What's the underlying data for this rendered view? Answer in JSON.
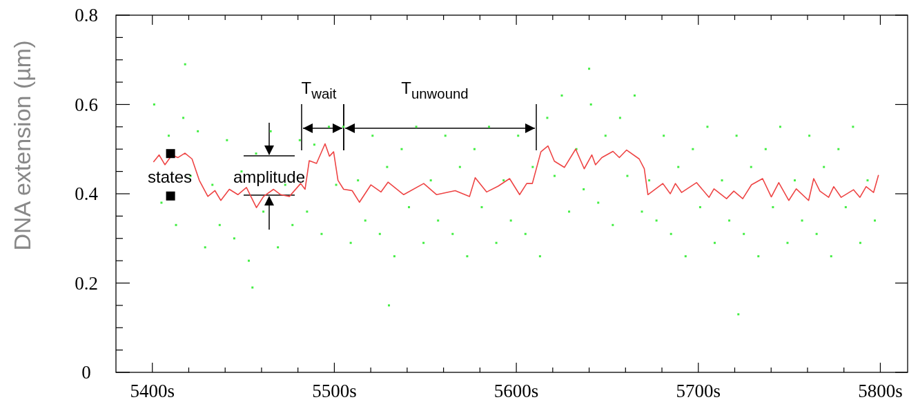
{
  "chart_data": {
    "type": "scatter",
    "ylabel": "DNA extension (µm)",
    "xlim": [
      5380,
      5815
    ],
    "xticks": [
      {
        "value": 5400,
        "label": "5400s"
      },
      {
        "value": 5420,
        "label": null
      },
      {
        "value": 5440,
        "label": null
      },
      {
        "value": 5460,
        "label": null
      },
      {
        "value": 5480,
        "label": null
      },
      {
        "value": 5500,
        "label": "5500s"
      },
      {
        "value": 5520,
        "label": null
      },
      {
        "value": 5540,
        "label": null
      },
      {
        "value": 5560,
        "label": null
      },
      {
        "value": 5580,
        "label": null
      },
      {
        "value": 5600,
        "label": "5600s"
      },
      {
        "value": 5620,
        "label": null
      },
      {
        "value": 5640,
        "label": null
      },
      {
        "value": 5660,
        "label": null
      },
      {
        "value": 5680,
        "label": null
      },
      {
        "value": 5700,
        "label": "5700s"
      },
      {
        "value": 5720,
        "label": null
      },
      {
        "value": 5740,
        "label": null
      },
      {
        "value": 5760,
        "label": null
      },
      {
        "value": 5780,
        "label": null
      },
      {
        "value": 5800,
        "label": "5800s"
      }
    ],
    "ylim": [
      0,
      0.8
    ],
    "yticks": [
      0,
      {
        "value": 0.05,
        "label": null
      },
      {
        "value": 0.1,
        "label": null
      },
      {
        "value": 0.15,
        "label": null
      },
      0.2,
      {
        "value": 0.25,
        "label": null
      },
      {
        "value": 0.3,
        "label": null
      },
      {
        "value": 0.35,
        "label": null
      },
      0.4,
      {
        "value": 0.45,
        "label": null
      },
      {
        "value": 0.5,
        "label": null
      },
      {
        "value": 0.55,
        "label": null
      },
      0.6,
      {
        "value": 0.65,
        "label": null
      },
      {
        "value": 0.7,
        "label": null
      },
      {
        "value": 0.75,
        "label": null
      },
      0.8
    ],
    "series": [
      {
        "marker": "square",
        "color": "#44ee44",
        "x": [
          5401,
          5405,
          5409,
          5413,
          5417,
          5421,
          5425,
          5429,
          5433,
          5437,
          5441,
          5445,
          5449,
          5453,
          5457,
          5461,
          5465,
          5469,
          5473,
          5477,
          5481,
          5485,
          5489,
          5493,
          5497,
          5501,
          5505,
          5509,
          5513,
          5517,
          5521,
          5525,
          5529,
          5533,
          5537,
          5541,
          5545,
          5549,
          5553,
          5557,
          5561,
          5565,
          5569,
          5573,
          5577,
          5581,
          5585,
          5589,
          5593,
          5597,
          5601,
          5605,
          5609,
          5613,
          5617,
          5621,
          5625,
          5629,
          5633,
          5637,
          5641,
          5645,
          5649,
          5653,
          5657,
          5661,
          5665,
          5669,
          5673,
          5677,
          5681,
          5685,
          5689,
          5693,
          5697,
          5701,
          5705,
          5709,
          5713,
          5717,
          5721,
          5725,
          5729,
          5733,
          5737,
          5741,
          5745,
          5749,
          5753,
          5757,
          5761,
          5765,
          5769,
          5773,
          5777,
          5781,
          5785,
          5789,
          5793,
          5797,
          5418,
          5455,
          5530,
          5640,
          5722
        ],
        "values": [
          0.6,
          0.38,
          0.53,
          0.33,
          0.57,
          0.44,
          0.54,
          0.28,
          0.42,
          0.33,
          0.52,
          0.3,
          0.45,
          0.25,
          0.49,
          0.36,
          0.54,
          0.28,
          0.42,
          0.33,
          0.52,
          0.36,
          0.51,
          0.31,
          0.55,
          0.42,
          0.55,
          0.29,
          0.43,
          0.34,
          0.53,
          0.31,
          0.46,
          0.26,
          0.5,
          0.37,
          0.55,
          0.29,
          0.43,
          0.34,
          0.53,
          0.31,
          0.46,
          0.26,
          0.5,
          0.37,
          0.55,
          0.29,
          0.43,
          0.34,
          0.53,
          0.31,
          0.46,
          0.26,
          0.57,
          0.44,
          0.62,
          0.36,
          0.5,
          0.41,
          0.6,
          0.38,
          0.53,
          0.33,
          0.57,
          0.44,
          0.62,
          0.36,
          0.43,
          0.34,
          0.53,
          0.31,
          0.46,
          0.26,
          0.5,
          0.37,
          0.55,
          0.29,
          0.43,
          0.34,
          0.53,
          0.31,
          0.46,
          0.26,
          0.5,
          0.37,
          0.55,
          0.29,
          0.43,
          0.34,
          0.53,
          0.31,
          0.46,
          0.26,
          0.5,
          0.37,
          0.55,
          0.29,
          0.43,
          0.34,
          0.69,
          0.19,
          0.15,
          0.68,
          0.13
        ]
      },
      {
        "type": "line",
        "color": "#ee4444",
        "x": [
          5400.6,
          5403.7,
          5406.9,
          5410.8,
          5414,
          5417.9,
          5421.8,
          5425.8,
          5430.5,
          5434.4,
          5437.6,
          5442.3,
          5447,
          5451.7,
          5457.2,
          5461.1,
          5466.6,
          5470.5,
          5475.3,
          5481.5,
          5483.9,
          5486.2,
          5490.2,
          5494.9,
          5497.3,
          5499.6,
          5502,
          5505.1,
          5509.8,
          5513.8,
          5520.1,
          5525.6,
          5529.5,
          5538.1,
          5549.1,
          5556.2,
          5566.4,
          5574.3,
          5577.4,
          5583.7,
          5590,
          5596.3,
          5601.8,
          5605.7,
          5608.8,
          5613.5,
          5617.4,
          5620.9,
          5626.4,
          5632.6,
          5637.3,
          5641.5,
          5643.5,
          5647,
          5653.1,
          5656.6,
          5660.6,
          5667.5,
          5670.3,
          5672.3,
          5680.5,
          5684.6,
          5687.4,
          5690.8,
          5699,
          5705.9,
          5708.6,
          5715.5,
          5719.5,
          5724.4,
          5729.2,
          5735.3,
          5740.1,
          5744.2,
          5749.7,
          5753.8,
          5760.6,
          5763.4,
          5766.8,
          5771.6,
          5774.4,
          5778.5,
          5785.3,
          5788.8,
          5792.2,
          5796.3,
          5799
        ],
        "values": [
          0.471,
          0.487,
          0.465,
          0.487,
          0.481,
          0.491,
          0.478,
          0.43,
          0.394,
          0.407,
          0.385,
          0.41,
          0.398,
          0.414,
          0.369,
          0.394,
          0.41,
          0.398,
          0.394,
          0.423,
          0.41,
          0.474,
          0.468,
          0.512,
          0.484,
          0.494,
          0.43,
          0.41,
          0.407,
          0.381,
          0.42,
          0.404,
          0.426,
          0.398,
          0.423,
          0.398,
          0.407,
          0.394,
          0.436,
          0.404,
          0.417,
          0.434,
          0.398,
          0.423,
          0.423,
          0.494,
          0.507,
          0.473,
          0.459,
          0.5,
          0.456,
          0.487,
          0.465,
          0.481,
          0.495,
          0.481,
          0.498,
          0.478,
          0.456,
          0.398,
          0.423,
          0.4,
          0.423,
          0.403,
          0.425,
          0.392,
          0.411,
          0.389,
          0.406,
          0.389,
          0.42,
          0.434,
          0.393,
          0.425,
          0.385,
          0.411,
          0.385,
          0.434,
          0.406,
          0.392,
          0.416,
          0.392,
          0.409,
          0.392,
          0.416,
          0.403,
          0.442
        ]
      },
      {
        "marker": "square",
        "color": "#000000",
        "x": [
          5410,
          5410
        ],
        "values": [
          0.49,
          0.395
        ]
      }
    ],
    "annotations": [
      "states",
      "amplitude",
      "T$_{wait}$",
      "T$_{unwound}$"
    ]
  }
}
